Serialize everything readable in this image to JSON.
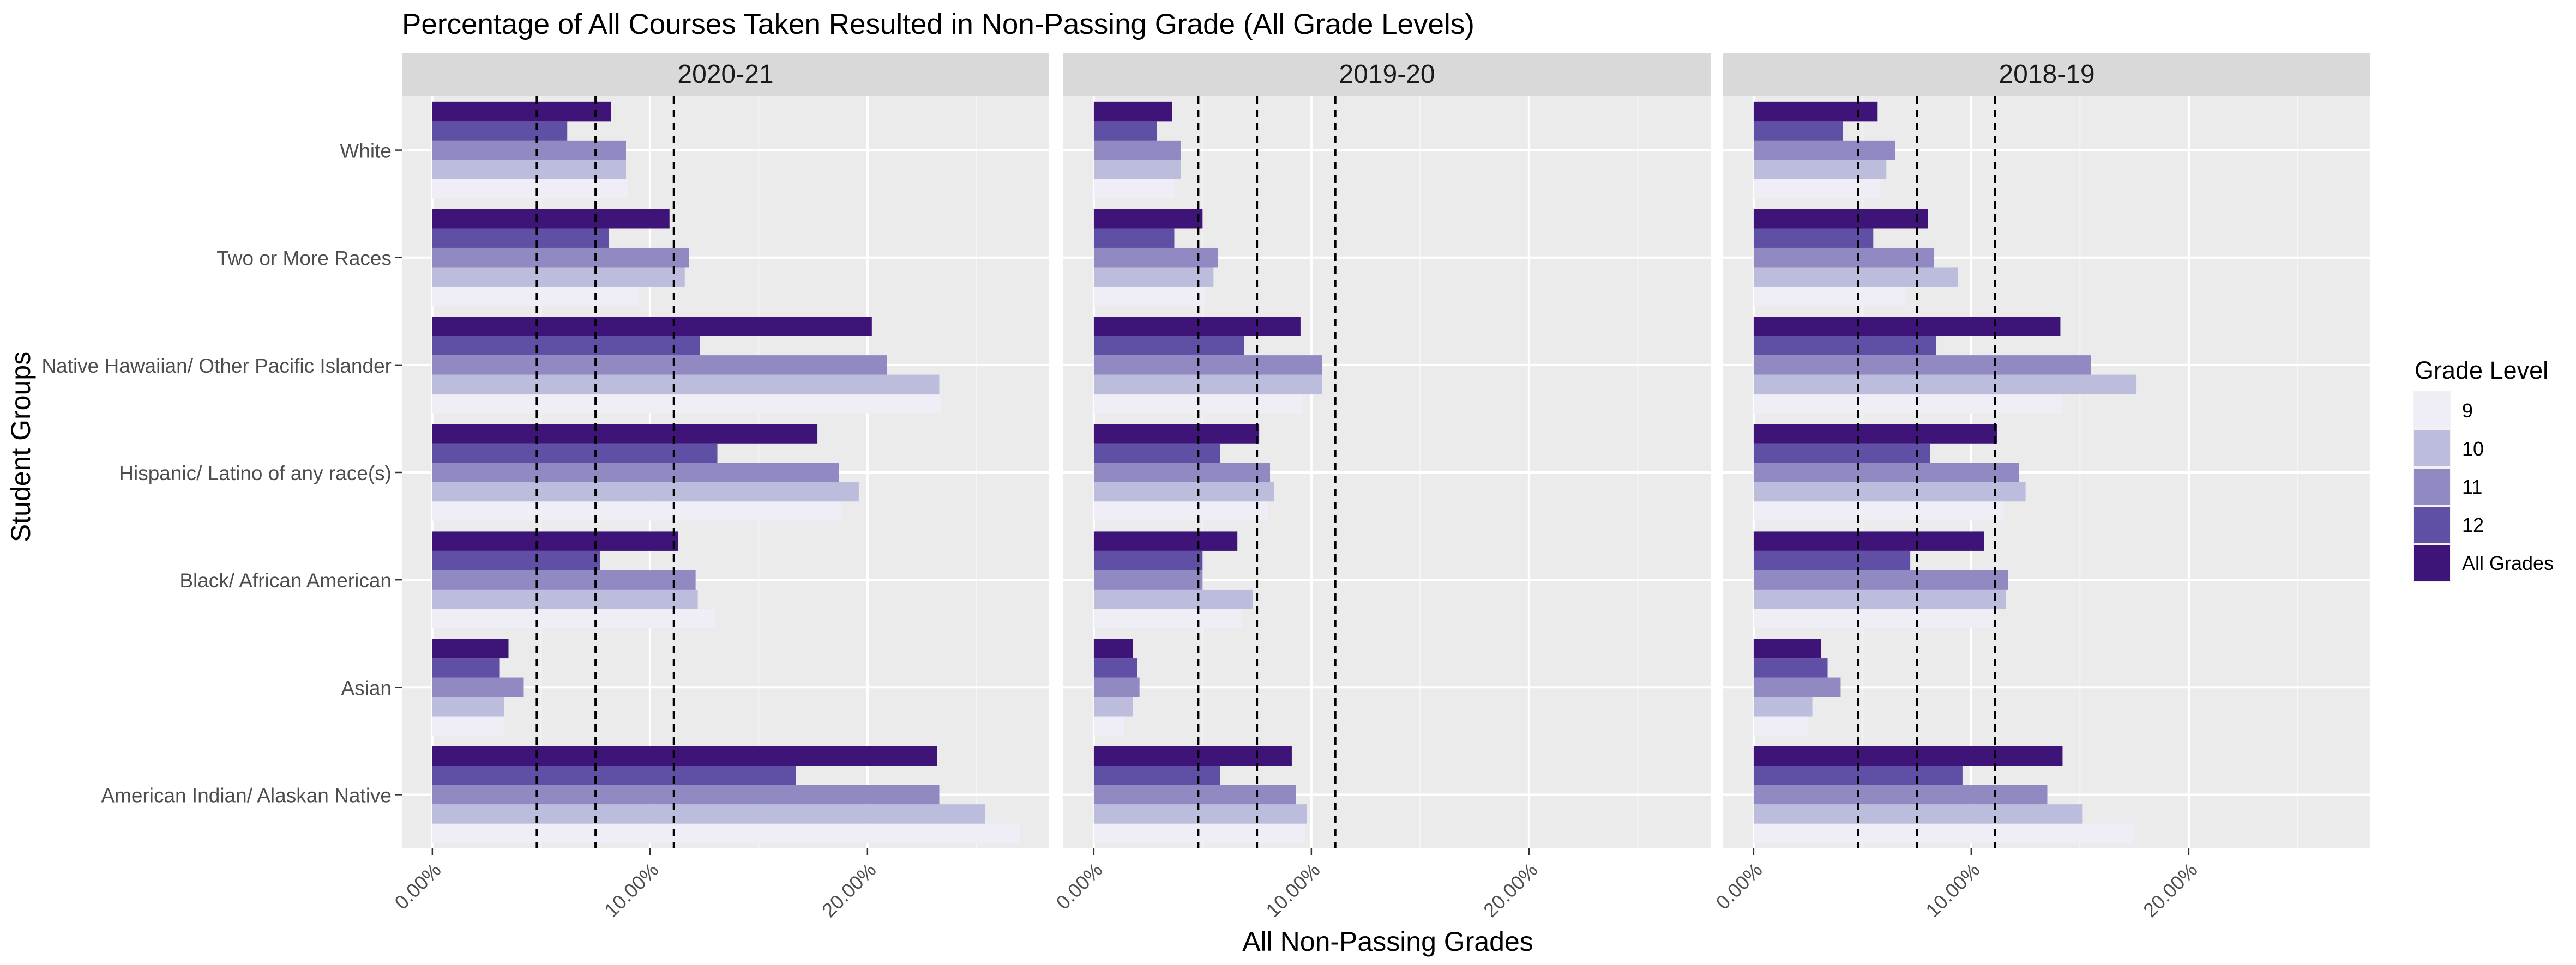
{
  "chart_data": {
    "type": "bar",
    "orientation": "horizontal",
    "title": "Percentage of All Courses Taken Resulted in Non-Passing Grade (All Grade Levels)",
    "xlabel": "All Non-Passing Grades",
    "ylabel": "Student Groups",
    "xlim": [
      -0.014,
      0.2835
    ],
    "x_ticks": [
      0,
      0.1,
      0.2
    ],
    "x_tick_labels": [
      "0.00%",
      "10.00%",
      "20.00%"
    ],
    "grid": true,
    "legend_title": "Grade Level",
    "legend_position": "right",
    "categories": [
      "American Indian/ Alaskan Native",
      "Asian",
      "Black/ African American",
      "Hispanic/ Latino of any race(s)",
      "Native Hawaiian/ Other Pacific Islander",
      "Two or More Races",
      "White"
    ],
    "series_names": [
      "9",
      "10",
      "11",
      "12",
      "All Grades"
    ],
    "series_colors": [
      "#efedf5",
      "#bcbddc",
      "#9089c2",
      "#6050a5",
      "#3f1479"
    ],
    "panels": [
      {
        "title": "2020-21",
        "reference_lines": [
          0.048,
          0.075,
          0.111
        ],
        "values": {
          "American Indian/ Alaskan Native": [
            0.27,
            0.254,
            0.233,
            0.167,
            0.232
          ],
          "Asian": [
            0.033,
            0.033,
            0.042,
            0.031,
            0.035
          ],
          "Black/ African American": [
            0.13,
            0.122,
            0.121,
            0.077,
            0.113
          ],
          "Hispanic/ Latino of any race(s)": [
            0.188,
            0.196,
            0.187,
            0.131,
            0.177
          ],
          "Native Hawaiian/ Other Pacific Islander": [
            0.234,
            0.233,
            0.209,
            0.123,
            0.202
          ],
          "Two or More Races": [
            0.095,
            0.116,
            0.118,
            0.081,
            0.109
          ],
          "White": [
            0.09,
            0.089,
            0.089,
            0.062,
            0.082
          ]
        }
      },
      {
        "title": "2019-20",
        "reference_lines": [
          0.048,
          0.075,
          0.111
        ],
        "values": {
          "American Indian/ Alaskan Native": [
            0.097,
            0.098,
            0.093,
            0.058,
            0.091
          ],
          "Asian": [
            0.014,
            0.018,
            0.021,
            0.02,
            0.018
          ],
          "Black/ African American": [
            0.068,
            0.073,
            0.05,
            0.05,
            0.066
          ],
          "Hispanic/ Latino of any race(s)": [
            0.08,
            0.083,
            0.081,
            0.058,
            0.076
          ],
          "Native Hawaiian/ Other Pacific Islander": [
            0.096,
            0.105,
            0.105,
            0.069,
            0.095
          ],
          "Two or More Races": [
            0.051,
            0.055,
            0.057,
            0.037,
            0.05
          ],
          "White": [
            0.037,
            0.04,
            0.04,
            0.029,
            0.036
          ]
        }
      },
      {
        "title": "2018-19",
        "reference_lines": [
          0.048,
          0.075,
          0.111
        ],
        "values": {
          "American Indian/ Alaskan Native": [
            0.175,
            0.151,
            0.135,
            0.096,
            0.142
          ],
          "Asian": [
            0.025,
            0.027,
            0.04,
            0.034,
            0.031
          ],
          "Black/ African American": [
            0.11,
            0.116,
            0.117,
            0.072,
            0.106
          ],
          "Hispanic/ Latino of any race(s)": [
            0.115,
            0.125,
            0.122,
            0.081,
            0.112
          ],
          "Native Hawaiian/ Other Pacific Islander": [
            0.142,
            0.176,
            0.155,
            0.084,
            0.141
          ],
          "Two or More Races": [
            0.07,
            0.094,
            0.083,
            0.055,
            0.08
          ],
          "White": [
            0.058,
            0.061,
            0.065,
            0.041,
            0.057
          ]
        }
      }
    ]
  }
}
